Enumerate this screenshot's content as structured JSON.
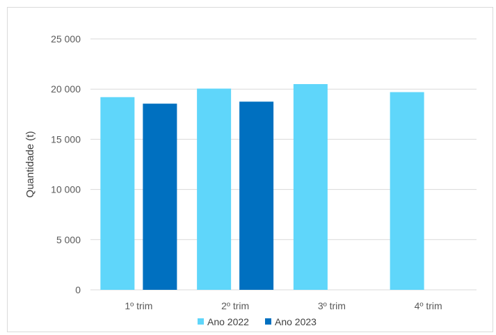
{
  "chart_data": {
    "type": "bar",
    "title": "",
    "xlabel": "",
    "ylabel": "Quantidade (t)",
    "categories": [
      "1º trim",
      "2º trim",
      "3º trim",
      "4º trim"
    ],
    "series": [
      {
        "name": "Ano 2022",
        "color": "#5fd6fa",
        "values": [
          19200,
          20050,
          20500,
          19700
        ]
      },
      {
        "name": "Ano 2023",
        "color": "#0070c0",
        "values": [
          18550,
          18750,
          null,
          null
        ]
      }
    ],
    "ylim": [
      0,
      25000
    ],
    "yticks": [
      0,
      5000,
      10000,
      15000,
      20000,
      25000
    ],
    "ytick_labels": [
      "0",
      "5 000",
      "10 000",
      "15 000",
      "20 000",
      "25 000"
    ],
    "grid": true,
    "legend": "bottom"
  }
}
